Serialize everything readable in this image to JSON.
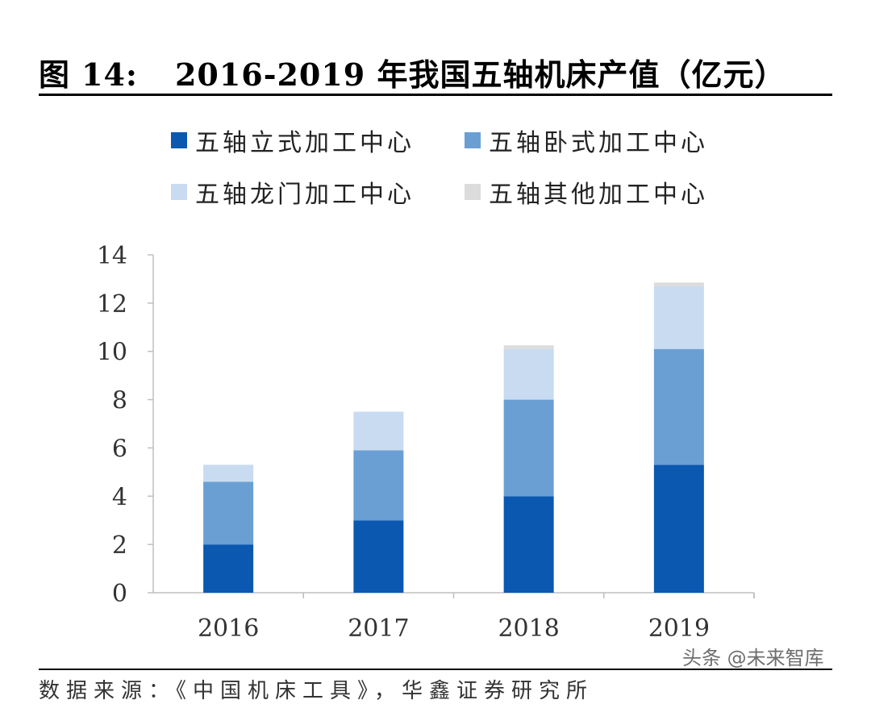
{
  "figure": {
    "label": "图",
    "number": "14:",
    "title": "2016-2019 年我国五轴机床产值（亿元）"
  },
  "source_text": "数据来源：《中国机床工具》，华鑫证券研究所",
  "watermark": "头条 @未来智库",
  "chart_data": {
    "type": "bar",
    "stacked": true,
    "title": "2016-2019 年我国五轴机床产值（亿元）",
    "categories": [
      "2016",
      "2017",
      "2018",
      "2019"
    ],
    "series": [
      {
        "name": "五轴立式加工中心",
        "color": "#0a58b0",
        "values": [
          2.0,
          3.0,
          4.0,
          5.3
        ]
      },
      {
        "name": "五轴卧式加工中心",
        "color": "#6a9fd4",
        "values": [
          2.6,
          2.9,
          4.0,
          4.8
        ]
      },
      {
        "name": "五轴龙门加工中心",
        "color": "#c8dbf0",
        "values": [
          0.7,
          1.6,
          2.1,
          2.6
        ]
      },
      {
        "name": "五轴其他加工中心",
        "color": "#dcdcdc",
        "values": [
          0.0,
          0.0,
          0.15,
          0.15
        ]
      }
    ],
    "ylim": [
      0,
      14
    ],
    "yticks": [
      0,
      2,
      4,
      6,
      8,
      10,
      12,
      14
    ],
    "xlabel": "",
    "ylabel": "",
    "legend_position": "top",
    "grid": false
  }
}
